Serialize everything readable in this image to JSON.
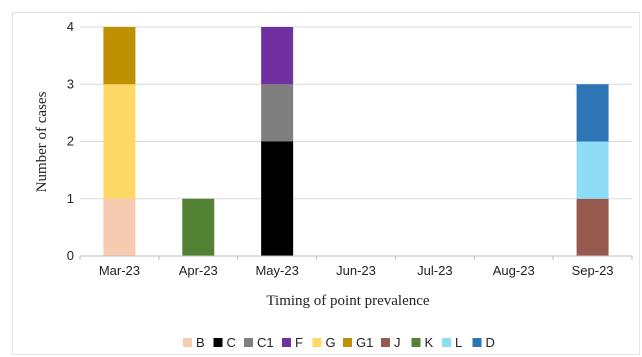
{
  "chart_data": {
    "type": "bar",
    "stacked": true,
    "xlabel": "Timing of point prevalence",
    "ylabel": "Number of cases",
    "ylim": [
      0,
      4
    ],
    "yticks": [
      0,
      1,
      2,
      3,
      4
    ],
    "grid": "horizontal",
    "legend_position": "bottom",
    "categories": [
      "Mar-23",
      "Apr-23",
      "May-23",
      "Jun-23",
      "Jul-23",
      "Aug-23",
      "Sep-23"
    ],
    "series": [
      {
        "name": "B",
        "color": "#f7cbb0",
        "values": [
          1,
          0,
          0,
          0,
          0,
          0,
          0
        ]
      },
      {
        "name": "C",
        "color": "#000000",
        "values": [
          0,
          0,
          2,
          0,
          0,
          0,
          0
        ]
      },
      {
        "name": "C1",
        "color": "#7f7f7f",
        "values": [
          0,
          0,
          1,
          0,
          0,
          0,
          0
        ]
      },
      {
        "name": "F",
        "color": "#7030a0",
        "values": [
          0,
          0,
          1,
          0,
          0,
          0,
          0
        ]
      },
      {
        "name": "G",
        "color": "#ffd966",
        "values": [
          2,
          0,
          0,
          0,
          0,
          0,
          0
        ]
      },
      {
        "name": "G1",
        "color": "#bf9000",
        "values": [
          1,
          0,
          0,
          0,
          0,
          0,
          0
        ]
      },
      {
        "name": "J",
        "color": "#975a4f",
        "values": [
          0,
          0,
          0,
          0,
          0,
          0,
          1
        ]
      },
      {
        "name": "K",
        "color": "#548235",
        "values": [
          0,
          1,
          0,
          0,
          0,
          0,
          0
        ]
      },
      {
        "name": "L",
        "color": "#8fdcf7",
        "values": [
          0,
          0,
          0,
          0,
          0,
          0,
          1
        ]
      },
      {
        "name": "D",
        "color": "#2e75b6",
        "values": [
          0,
          0,
          0,
          0,
          0,
          0,
          1
        ]
      }
    ]
  }
}
